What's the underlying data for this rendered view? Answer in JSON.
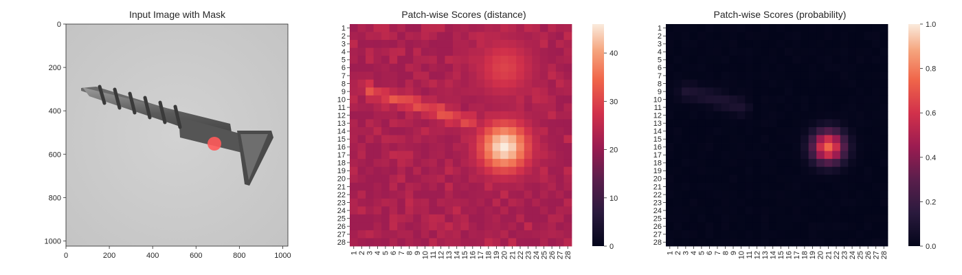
{
  "figure": {
    "panel_image": {
      "title": "Input Image with Mask",
      "x_ticks": [
        "0",
        "200",
        "400",
        "600",
        "800",
        "1000"
      ],
      "y_ticks": [
        "0",
        "200",
        "400",
        "600",
        "800",
        "1000"
      ]
    }
  },
  "chart_data": [
    {
      "type": "image",
      "title": "Input Image with Mask",
      "xlim": [
        0,
        1024
      ],
      "ylim": [
        1024,
        0
      ],
      "x_ticks": [
        0,
        200,
        400,
        600,
        800,
        1000
      ],
      "y_ticks": [
        0,
        200,
        400,
        600,
        800,
        1000
      ],
      "content": "grayscale photo of a metal screw on light gray background",
      "mask": {
        "center": [
          680,
          550
        ],
        "radius": 35,
        "color": "#ff4b4b"
      }
    },
    {
      "type": "heatmap",
      "title": "Patch-wise Scores (distance)",
      "rows": 28,
      "cols": 28,
      "row_labels": [
        "1",
        "2",
        "3",
        "4",
        "5",
        "6",
        "7",
        "8",
        "9",
        "10",
        "11",
        "12",
        "13",
        "14",
        "15",
        "16",
        "17",
        "18",
        "19",
        "20",
        "21",
        "22",
        "23",
        "24",
        "25",
        "26",
        "27",
        "28"
      ],
      "col_labels": [
        "1",
        "2",
        "3",
        "4",
        "5",
        "6",
        "7",
        "8",
        "9",
        "10",
        "11",
        "12",
        "13",
        "14",
        "15",
        "16",
        "17",
        "18",
        "19",
        "20",
        "21",
        "22",
        "23",
        "24",
        "25",
        "26",
        "27",
        "28"
      ],
      "colorbar": {
        "min": 0,
        "max": 46,
        "ticks": [
          "0",
          "10",
          "20",
          "30",
          "40"
        ],
        "colormap": "rocket"
      },
      "baseline": 21,
      "features": [
        {
          "label": "anomaly peak",
          "row": 16,
          "col": 20,
          "value": 46,
          "spread": 2.2
        },
        {
          "label": "screw body ridge",
          "path": [
            [
              9,
              3
            ],
            [
              10,
              6
            ],
            [
              11,
              10
            ],
            [
              12,
              13
            ],
            [
              13,
              16
            ]
          ],
          "value": 31
        },
        {
          "label": "upper hotspot",
          "row": 6,
          "col": 20,
          "value": 30,
          "spread": 2.5
        }
      ]
    },
    {
      "type": "heatmap",
      "title": "Patch-wise Scores (probability)",
      "rows": 28,
      "cols": 28,
      "row_labels": [
        "1",
        "2",
        "3",
        "4",
        "5",
        "6",
        "7",
        "8",
        "9",
        "10",
        "11",
        "12",
        "13",
        "14",
        "15",
        "16",
        "17",
        "18",
        "19",
        "20",
        "21",
        "22",
        "23",
        "24",
        "25",
        "26",
        "27",
        "28"
      ],
      "col_labels": [
        "1",
        "2",
        "3",
        "4",
        "5",
        "6",
        "7",
        "8",
        "9",
        "10",
        "11",
        "12",
        "13",
        "14",
        "15",
        "16",
        "17",
        "18",
        "19",
        "20",
        "21",
        "22",
        "23",
        "24",
        "25",
        "26",
        "27",
        "28"
      ],
      "colorbar": {
        "min": 0.0,
        "max": 1.0,
        "ticks": [
          "0.0",
          "0.2",
          "0.4",
          "0.6",
          "0.8",
          "1.0"
        ],
        "colormap": "rocket"
      },
      "baseline": 0.0,
      "features": [
        {
          "label": "anomaly peak",
          "row": 16,
          "col": 21,
          "value": 0.75,
          "spread": 1.4
        },
        {
          "label": "faint ridge",
          "path": [
            [
              9,
              3
            ],
            [
              10,
              7
            ],
            [
              11,
              10
            ]
          ],
          "value": 0.1
        }
      ]
    }
  ]
}
